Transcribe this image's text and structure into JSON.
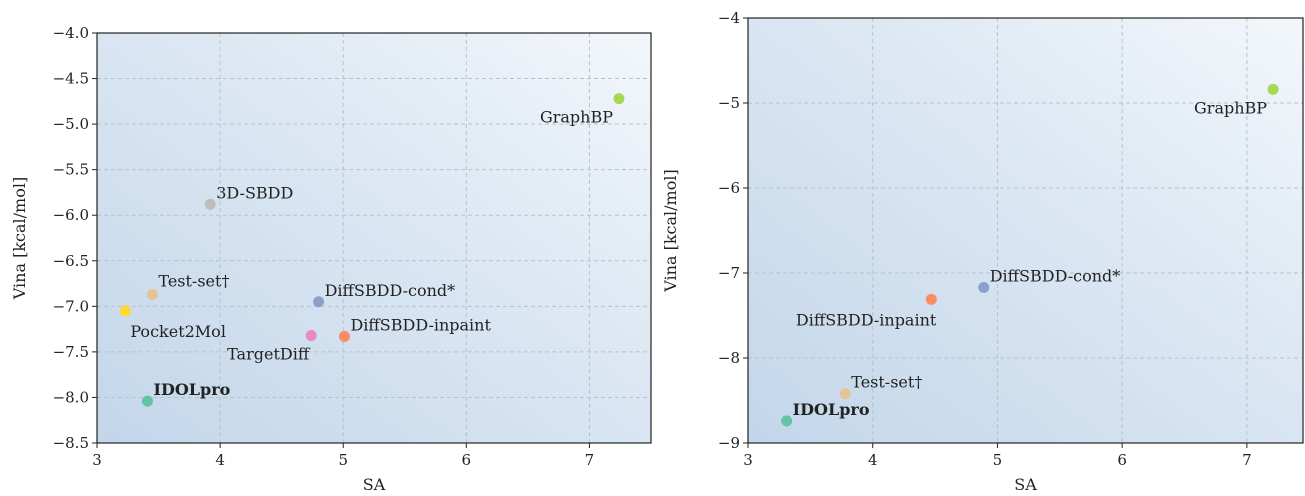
{
  "chart_data": [
    {
      "type": "scatter",
      "xlabel": "SA",
      "ylabel": "Vina [kcal/mol]",
      "xlim": [
        3,
        7.5
      ],
      "ylim": [
        -8.5,
        -4.0
      ],
      "xticks": [
        "3",
        "4",
        "5",
        "6",
        "7"
      ],
      "yticks": [
        "−4.0",
        "−4.5",
        "−5.0",
        "−5.5",
        "−6.0",
        "−6.5",
        "−7.0",
        "−7.5",
        "−8.0",
        "−8.5"
      ],
      "grid": true,
      "points": [
        {
          "label": "GraphBP",
          "x": 7.24,
          "y": -4.72,
          "color": "#a6d854",
          "anchor": "end",
          "dx": -6,
          "dy": 24,
          "bold": false
        },
        {
          "label": "3D-SBDD",
          "x": 3.92,
          "y": -5.88,
          "color": "#bdbdbd",
          "anchor": "start",
          "dx": 6,
          "dy": -6,
          "bold": false
        },
        {
          "label": "Test-set†",
          "x": 3.45,
          "y": -6.87,
          "color": "#e5c494",
          "anchor": "start",
          "dx": 6,
          "dy": -8,
          "bold": false
        },
        {
          "label": "Pocket2Mol",
          "x": 3.23,
          "y": -7.05,
          "color": "#ffd92f",
          "anchor": "start",
          "dx": 5,
          "dy": 26,
          "bold": false
        },
        {
          "label": "DiffSBDD-cond*",
          "x": 4.8,
          "y": -6.95,
          "color": "#8da0cb",
          "anchor": "start",
          "dx": 6,
          "dy": -6,
          "bold": false
        },
        {
          "label": "TargetDiff",
          "x": 4.74,
          "y": -7.32,
          "color": "#e78ac3",
          "anchor": "end",
          "dx": -2,
          "dy": 24,
          "bold": false
        },
        {
          "label": "DiffSBDD-inpaint",
          "x": 5.01,
          "y": -7.33,
          "color": "#fc8d62",
          "anchor": "start",
          "dx": 6,
          "dy": -6,
          "bold": false
        },
        {
          "label": "IDOLpro",
          "x": 3.41,
          "y": -8.04,
          "color": "#66c2a5",
          "anchor": "start",
          "dx": 6,
          "dy": -6,
          "bold": true
        }
      ]
    },
    {
      "type": "scatter",
      "xlabel": "SA",
      "ylabel": "Vina [kcal/mol]",
      "xlim": [
        3,
        7.45
      ],
      "ylim": [
        -9,
        -4
      ],
      "xticks": [
        "3",
        "4",
        "5",
        "6",
        "7"
      ],
      "yticks": [
        "−4",
        "−5",
        "−6",
        "−7",
        "−8",
        "−9"
      ],
      "grid": true,
      "points": [
        {
          "label": "GraphBP",
          "x": 7.21,
          "y": -4.84,
          "color": "#a6d854",
          "anchor": "end",
          "dx": -6,
          "dy": 24,
          "bold": false
        },
        {
          "label": "DiffSBDD-cond*",
          "x": 4.89,
          "y": -7.17,
          "color": "#8da0cb",
          "anchor": "start",
          "dx": 6,
          "dy": -6,
          "bold": false
        },
        {
          "label": "DiffSBDD-inpaint",
          "x": 4.47,
          "y": -7.31,
          "color": "#fc8d62",
          "anchor": "end",
          "dx": 5,
          "dy": 26,
          "bold": false
        },
        {
          "label": "Test-set†",
          "x": 3.78,
          "y": -8.42,
          "color": "#e5c494",
          "anchor": "start",
          "dx": 6,
          "dy": -6,
          "bold": false
        },
        {
          "label": "IDOLpro",
          "x": 3.31,
          "y": -8.74,
          "color": "#66c2a5",
          "anchor": "start",
          "dx": 6,
          "dy": -6,
          "bold": true
        }
      ]
    }
  ]
}
